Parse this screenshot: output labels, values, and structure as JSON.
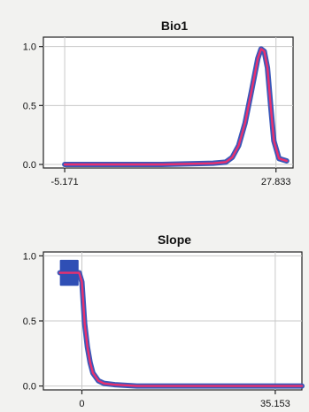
{
  "chart_data": [
    {
      "type": "line",
      "title": "Bio1",
      "xlabel": "",
      "ylabel": "",
      "xlim": [
        -8.5,
        30.5
      ],
      "ylim": [
        -0.03,
        1.08
      ],
      "x_tick_labels": [
        "-5.171",
        "27.833"
      ],
      "x_tick_values": [
        -5.171,
        27.833
      ],
      "y_tick_labels": [
        "1.0",
        "0.5",
        "0.0"
      ],
      "y_tick_values": [
        1.0,
        0.5,
        0.0
      ],
      "grid": true,
      "series": [
        {
          "style": "band",
          "color": "#2f4fb5",
          "x": [
            -5.171,
            10,
            18,
            20,
            21,
            22,
            23,
            24,
            25,
            25.5,
            26,
            26.5,
            27,
            27.5,
            28.3,
            29.5
          ],
          "y": [
            0.0,
            0.0,
            0.01,
            0.02,
            0.06,
            0.16,
            0.35,
            0.62,
            0.9,
            0.98,
            0.96,
            0.82,
            0.5,
            0.2,
            0.05,
            0.03
          ]
        },
        {
          "style": "line",
          "color": "#e8306f",
          "x": [
            -5.171,
            10,
            18,
            20,
            21,
            22,
            23,
            24,
            25,
            25.5,
            26,
            26.5,
            27,
            27.5,
            28.3,
            29.5
          ],
          "y": [
            0.0,
            0.0,
            0.01,
            0.02,
            0.06,
            0.16,
            0.35,
            0.62,
            0.9,
            0.98,
            0.96,
            0.82,
            0.5,
            0.2,
            0.05,
            0.03
          ]
        }
      ]
    },
    {
      "type": "line",
      "title": "Slope",
      "xlabel": "",
      "ylabel": "",
      "xlim": [
        -7,
        40
      ],
      "ylim": [
        -0.03,
        1.03
      ],
      "x_tick_labels": [
        "0",
        "35.153"
      ],
      "x_tick_values": [
        0,
        35.153
      ],
      "y_tick_labels": [
        "1.0",
        "0.5",
        "0.0"
      ],
      "y_tick_values": [
        1.0,
        0.5,
        0.0
      ],
      "grid": true,
      "series": [
        {
          "style": "band",
          "color": "#2f4fb5",
          "x": [
            -4,
            -0.6,
            -0.5,
            0,
            0.5,
            1,
            1.5,
            2,
            3,
            4,
            6,
            10,
            20,
            35.153,
            40
          ],
          "y": [
            0.87,
            0.87,
            0.87,
            0.8,
            0.48,
            0.3,
            0.18,
            0.1,
            0.04,
            0.02,
            0.01,
            0.0,
            0.0,
            0.0,
            0.0
          ]
        },
        {
          "style": "line",
          "color": "#e8306f",
          "x": [
            -4,
            -0.6,
            -0.5,
            0,
            0.5,
            1,
            1.5,
            2,
            3,
            4,
            6,
            10,
            20,
            35.153,
            40
          ],
          "y": [
            0.87,
            0.87,
            0.87,
            0.8,
            0.48,
            0.3,
            0.18,
            0.1,
            0.04,
            0.02,
            0.01,
            0.0,
            0.0,
            0.0,
            0.0
          ]
        }
      ],
      "box": {
        "color": "#2f4fb5",
        "x_range": [
          -4,
          -0.6
        ],
        "y_range": [
          0.77,
          0.97
        ]
      }
    }
  ]
}
